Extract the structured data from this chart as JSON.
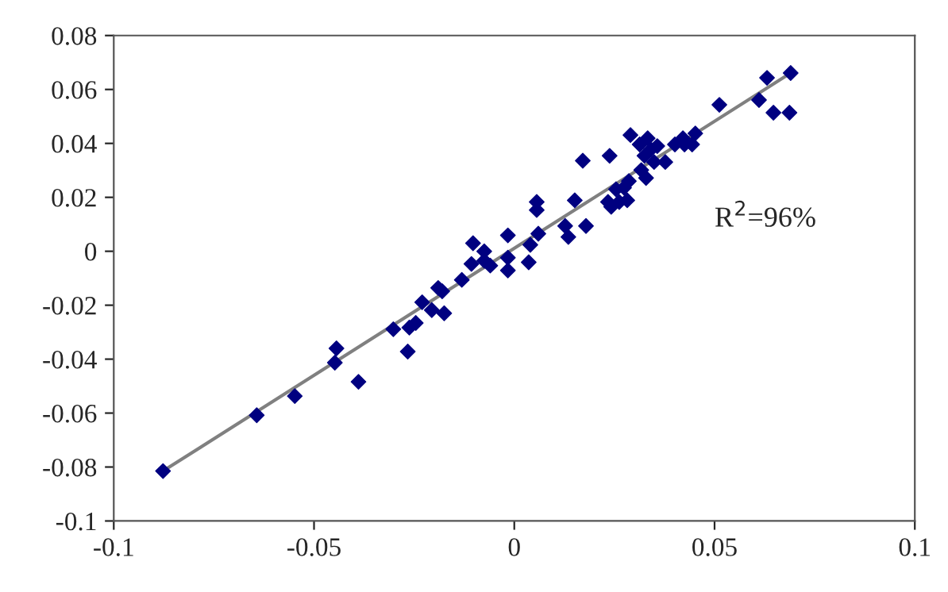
{
  "chart_data": {
    "type": "scatter",
    "xlim": [
      -0.1,
      0.1
    ],
    "ylim": [
      -0.1,
      0.08
    ],
    "xticks": [
      -0.1,
      -0.05,
      0,
      0.05,
      0.1
    ],
    "yticks": [
      -0.1,
      -0.08,
      -0.06,
      -0.04,
      -0.02,
      0,
      0.02,
      0.04,
      0.06,
      0.08
    ],
    "grid": false,
    "legend": false,
    "annotations": [
      "R$^{2}$=96%"
    ],
    "series": [
      {
        "marker": "diamond",
        "color": "#000080",
        "x": [
          -0.0877,
          -0.0643,
          -0.0548,
          -0.0444,
          -0.0448,
          -0.0389,
          -0.0302,
          -0.0266,
          -0.0262,
          -0.0246,
          -0.023,
          -0.0206,
          -0.019,
          -0.018,
          -0.0175,
          -0.0131,
          -0.0103,
          -0.0107,
          -0.0075,
          -0.0075,
          -0.006,
          -0.0016,
          -0.0016,
          -0.0016,
          0.0036,
          0.004,
          0.0056,
          0.0056,
          0.006,
          0.0127,
          0.0135,
          0.0151,
          0.0171,
          0.0179,
          0.0234,
          0.0238,
          0.0242,
          0.0254,
          0.0262,
          0.0274,
          0.0282,
          0.0286,
          0.029,
          0.0313,
          0.0317,
          0.0325,
          0.0329,
          0.0333,
          0.0341,
          0.0349,
          0.0357,
          0.0377,
          0.0401,
          0.0421,
          0.0425,
          0.0444,
          0.0452,
          0.0512,
          0.0611,
          0.0631,
          0.0647,
          0.0687,
          0.069
        ],
        "values": [
          -0.0815,
          -0.0608,
          -0.0537,
          -0.036,
          -0.0413,
          -0.0484,
          -0.0289,
          -0.0372,
          -0.0283,
          -0.0266,
          -0.0189,
          -0.0218,
          -0.0136,
          -0.0148,
          -0.023,
          -0.0106,
          0.003,
          -0.0047,
          0,
          -0.0035,
          -0.0053,
          0.0059,
          -0.0024,
          -0.0071,
          -0.0041,
          0.0024,
          0.0183,
          0.0153,
          0.0065,
          0.0094,
          0.0053,
          0.0189,
          0.0336,
          0.0094,
          0.0183,
          0.0354,
          0.0165,
          0.023,
          0.0183,
          0.0236,
          0.0189,
          0.026,
          0.0431,
          0.0396,
          0.0301,
          0.0354,
          0.0272,
          0.0419,
          0.0378,
          0.0331,
          0.039,
          0.0331,
          0.0396,
          0.0419,
          0.0396,
          0.0396,
          0.0437,
          0.0543,
          0.0561,
          0.0643,
          0.0514,
          0.0514,
          0.0661
        ]
      },
      {
        "type": "line",
        "marker": "none",
        "color": "#808080",
        "line_style": "solid",
        "x": [
          -0.0877,
          0.069
        ],
        "values": [
          -0.0815,
          0.0661
        ]
      }
    ]
  }
}
